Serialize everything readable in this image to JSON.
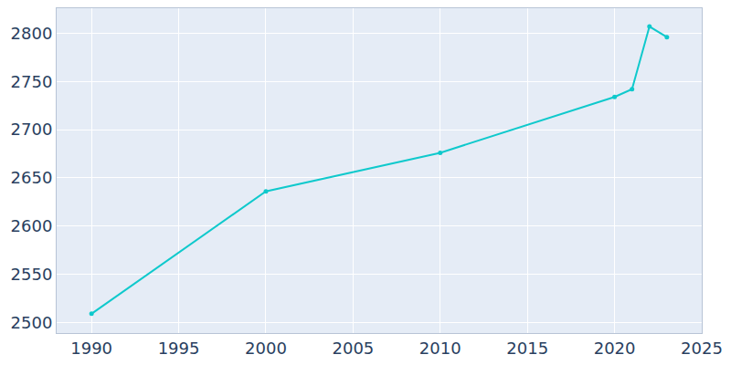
{
  "chart_data": {
    "type": "line",
    "x": [
      1990,
      2000,
      2010,
      2020,
      2021,
      2022,
      2023
    ],
    "values": [
      2509,
      2636,
      2676,
      2734,
      2742,
      2807,
      2796
    ],
    "color": "#0fc9cc",
    "marker": "circle",
    "line_style": "solid",
    "xlim": [
      1988,
      2025
    ],
    "xticks": [
      1990,
      1995,
      2000,
      2005,
      2010,
      2015,
      2020,
      2025
    ],
    "ylim": [
      2489,
      2826
    ],
    "yticks": [
      2500,
      2550,
      2600,
      2650,
      2700,
      2750,
      2800
    ],
    "grid": true
  }
}
